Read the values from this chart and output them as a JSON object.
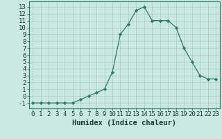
{
  "x": [
    0,
    1,
    2,
    3,
    4,
    5,
    6,
    7,
    8,
    9,
    10,
    11,
    12,
    13,
    14,
    15,
    16,
    17,
    18,
    19,
    20,
    21,
    22,
    23
  ],
  "y": [
    -1,
    -1,
    -1,
    -1,
    -1,
    -1,
    -0.5,
    0,
    0.5,
    1,
    3.5,
    9,
    10.5,
    12.5,
    13,
    11,
    11,
    11,
    10,
    7,
    5,
    3,
    2.5,
    2.5
  ],
  "line_color": "#2d7a6a",
  "marker_color": "#2d7a6a",
  "bg_color": "#c8e8e0",
  "grid_color": "#a8ccc4",
  "xlabel": "Humidex (Indice chaleur)",
  "xlim": [
    -0.5,
    23.5
  ],
  "ylim": [
    -1.8,
    13.8
  ],
  "yticks": [
    -1,
    0,
    1,
    2,
    3,
    4,
    5,
    6,
    7,
    8,
    9,
    10,
    11,
    12,
    13
  ],
  "xticks": [
    0,
    1,
    2,
    3,
    4,
    5,
    6,
    7,
    8,
    9,
    10,
    11,
    12,
    13,
    14,
    15,
    16,
    17,
    18,
    19,
    20,
    21,
    22,
    23
  ],
  "tick_fontsize": 6.5,
  "xlabel_fontsize": 7.5
}
